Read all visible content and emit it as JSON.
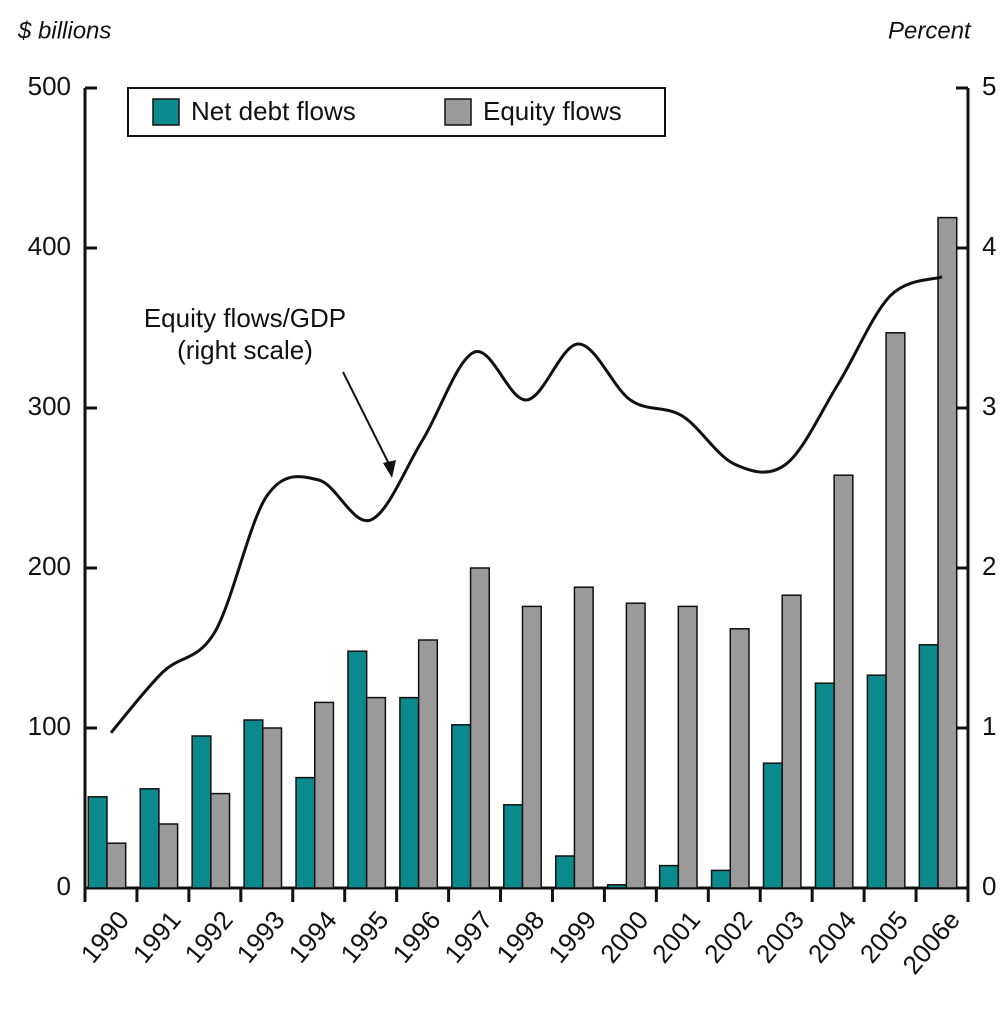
{
  "chart_data": {
    "type": "bar",
    "y_label": "$ billions",
    "y2_label": "Percent",
    "annotation": [
      "Equity flows/GDP",
      "(right scale)"
    ],
    "categories": [
      "1990",
      "1991",
      "1992",
      "1993",
      "1994",
      "1995",
      "1996",
      "1997",
      "1998",
      "1999",
      "2000",
      "2001",
      "2002",
      "2003",
      "2004",
      "2005",
      "2006e"
    ],
    "series": [
      {
        "name": "Net debt flows",
        "color": "#0a8a8c",
        "values": [
          57,
          62,
          95,
          105,
          69,
          148,
          119,
          102,
          52,
          20,
          2,
          14,
          11,
          78,
          128,
          133,
          152
        ]
      },
      {
        "name": "Equity flows",
        "color": "#9a9a9a",
        "values": [
          28,
          40,
          59,
          100,
          116,
          119,
          155,
          200,
          176,
          188,
          178,
          176,
          162,
          183,
          258,
          347,
          419
        ]
      },
      {
        "name": "Equity flows/GDP",
        "type": "line",
        "axis": "y2",
        "color": "#111111",
        "values": [
          0.97,
          1.35,
          1.6,
          2.45,
          2.55,
          2.3,
          2.8,
          3.35,
          3.05,
          3.4,
          3.05,
          2.95,
          2.65,
          2.65,
          3.15,
          3.7,
          3.82
        ]
      }
    ],
    "ylim": [
      0,
      500
    ],
    "yticks": [
      0,
      100,
      200,
      300,
      400,
      500
    ],
    "y2lim": [
      0,
      5
    ],
    "y2ticks": [
      0,
      1,
      2,
      3,
      4,
      5
    ],
    "legend": "top-left"
  }
}
